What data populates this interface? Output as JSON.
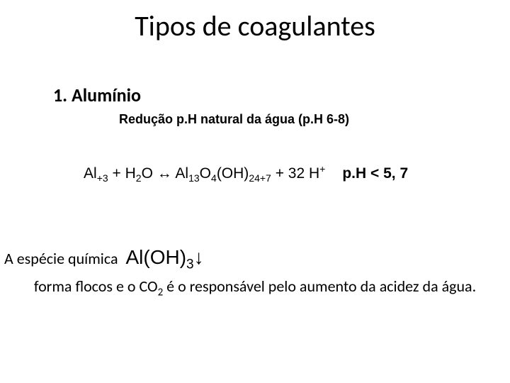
{
  "title": "Tipos de coagulantes",
  "subtitle": "1. Alumínio",
  "reduction_line": "Redução  p.H natural da água   (p.H 6-8)",
  "equation": {
    "al_pre": "Al",
    "al_sub": "+3",
    "plus1": " + H",
    "h2_sub": "2",
    "o_arrow": "O ↔ Al",
    "al13_sub": "13",
    "o4": "O",
    "o4_sub": "4",
    "oh": "(OH)",
    "oh_sub": "24+7",
    "plus32": " + 32 H",
    "h_sup": "+",
    "ph_cond": "p.H < 5, 7"
  },
  "species_line": {
    "prefix": "A espécie  química",
    "al": "Al(OH)",
    "al_sub": "3",
    "arrow": "↓"
  },
  "conclusion": {
    "t1": "forma flocos e o CO",
    "co2_sub": "2",
    "t2": " é o responsável pelo aumento da acidez da água."
  }
}
